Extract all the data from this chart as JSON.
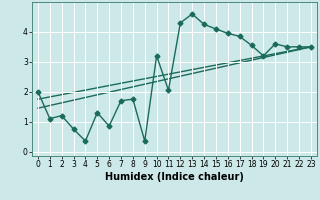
{
  "title": "",
  "xlabel": "Humidex (Indice chaleur)",
  "ylabel": "",
  "background_color": "#cde8e8",
  "line_color": "#1a6b5a",
  "grid_color": "#b0d8d8",
  "xlim": [
    -0.5,
    23.5
  ],
  "ylim": [
    -0.15,
    5.0
  ],
  "xticks": [
    0,
    1,
    2,
    3,
    4,
    5,
    6,
    7,
    8,
    9,
    10,
    11,
    12,
    13,
    14,
    15,
    16,
    17,
    18,
    19,
    20,
    21,
    22,
    23
  ],
  "yticks": [
    0,
    1,
    2,
    3,
    4
  ],
  "series1_x": [
    0,
    1,
    2,
    3,
    4,
    5,
    6,
    7,
    8,
    9,
    10,
    11,
    12,
    13,
    14,
    15,
    16,
    17,
    18,
    19,
    20,
    21,
    22,
    23
  ],
  "series1_y": [
    2.0,
    1.1,
    1.2,
    0.75,
    0.35,
    1.3,
    0.85,
    1.7,
    1.75,
    0.35,
    3.2,
    2.05,
    4.3,
    4.6,
    4.25,
    4.1,
    3.95,
    3.85,
    3.55,
    3.2,
    3.6,
    3.5,
    3.5,
    3.5
  ],
  "series2_x": [
    0,
    23
  ],
  "series2_y": [
    1.75,
    3.5
  ],
  "series3_x": [
    0,
    23
  ],
  "series3_y": [
    1.45,
    3.5
  ],
  "marker_size": 2.5,
  "line_width": 1.0,
  "tick_fontsize": 5.5,
  "xlabel_fontsize": 7
}
